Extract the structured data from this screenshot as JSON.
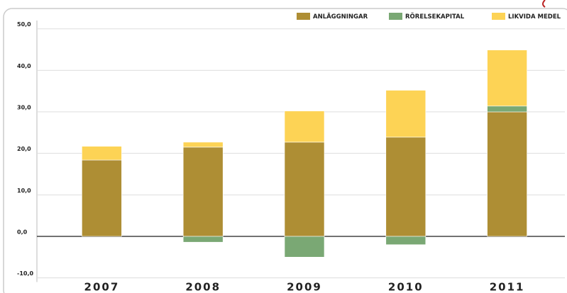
{
  "chart_data": {
    "type": "stacked_bar",
    "categories": [
      "2007",
      "2008",
      "2009",
      "2010",
      "2011"
    ],
    "series": [
      {
        "name": "ANLÄGGNINGAR",
        "color": "#ae8e34",
        "values": [
          18.4,
          21.5,
          22.7,
          23.9,
          30.0
        ]
      },
      {
        "name": "RÖRELSEKAPITAL",
        "color": "#7aa874",
        "values": [
          0,
          -1.4,
          -5.0,
          -2.0,
          1.4
        ]
      },
      {
        "name": "LIKVIDA MEDEL",
        "color": "#fdd355",
        "values": [
          3.3,
          1.2,
          7.5,
          11.3,
          13.5
        ]
      }
    ],
    "ylim": [
      -11,
      52
    ],
    "yticks": [
      {
        "value": -10,
        "label": "-10,0"
      },
      {
        "value": 0,
        "label": "0,0"
      },
      {
        "value": 10,
        "label": "10,0"
      },
      {
        "value": 20,
        "label": "20,0"
      },
      {
        "value": 30,
        "label": "30,0"
      },
      {
        "value": 40,
        "label": "40,0"
      },
      {
        "value": 50,
        "label": "50,0"
      }
    ],
    "grid": true,
    "legend": "top-right"
  }
}
